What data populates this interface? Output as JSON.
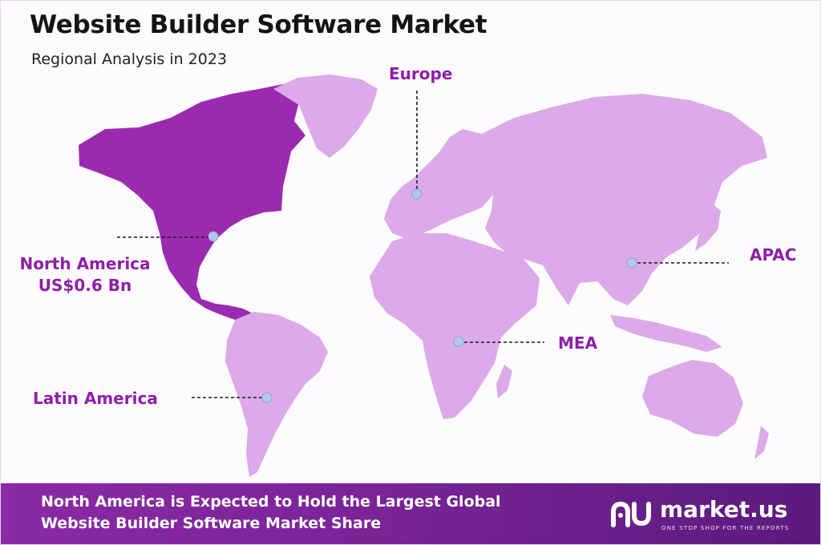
{
  "header": {
    "title": "Website Builder Software Market",
    "subtitle": "Regional Analysis in 2023"
  },
  "colors": {
    "highlight_region": "#9a2bb0",
    "other_regions": "#dca9e9",
    "label": "#8e1fa6",
    "marker": "#b7c6ee",
    "footer": "#7a2498"
  },
  "regions": [
    {
      "id": "north-america",
      "name": "North America",
      "value": "US$0.6 Bn",
      "highlighted": true
    },
    {
      "id": "europe",
      "name": "Europe",
      "value": "",
      "highlighted": false
    },
    {
      "id": "apac",
      "name": "APAC",
      "value": "",
      "highlighted": false
    },
    {
      "id": "mea",
      "name": "MEA",
      "value": "",
      "highlighted": false
    },
    {
      "id": "latin-america",
      "name": "Latin America",
      "value": "",
      "highlighted": false
    }
  ],
  "footer": {
    "line1": "North America is Expected to Hold the Largest Global",
    "line2": "Website Builder Software Market Share",
    "brand_name": "market.us",
    "brand_tagline": "ONE STOP SHOP FOR THE REPORTS"
  }
}
